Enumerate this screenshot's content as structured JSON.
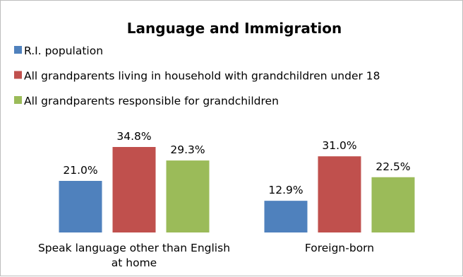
{
  "chart_data": {
    "type": "bar",
    "title": "Language and Immigration",
    "categories": [
      [
        "Speak language other than English",
        "at home"
      ],
      [
        "Foreign-born"
      ]
    ],
    "series": [
      {
        "name": "R.I. population",
        "color": "#4f81bd",
        "values": [
          21.0,
          12.9
        ],
        "labels": [
          "21.0%",
          "12.9%"
        ]
      },
      {
        "name": "All grandparents living in household with grandchildren under 18",
        "color": "#c0504d",
        "values": [
          34.8,
          31.0
        ],
        "labels": [
          "34.8%",
          "31.0%"
        ]
      },
      {
        "name": "All grandparents responsible for grandchildren",
        "color": "#9bbb59",
        "values": [
          29.3,
          22.5
        ],
        "labels": [
          "29.3%",
          "22.5%"
        ]
      }
    ],
    "ylim": [
      0,
      40
    ],
    "legend_position": "top-left",
    "grid": false,
    "xlabel": "",
    "ylabel": ""
  }
}
